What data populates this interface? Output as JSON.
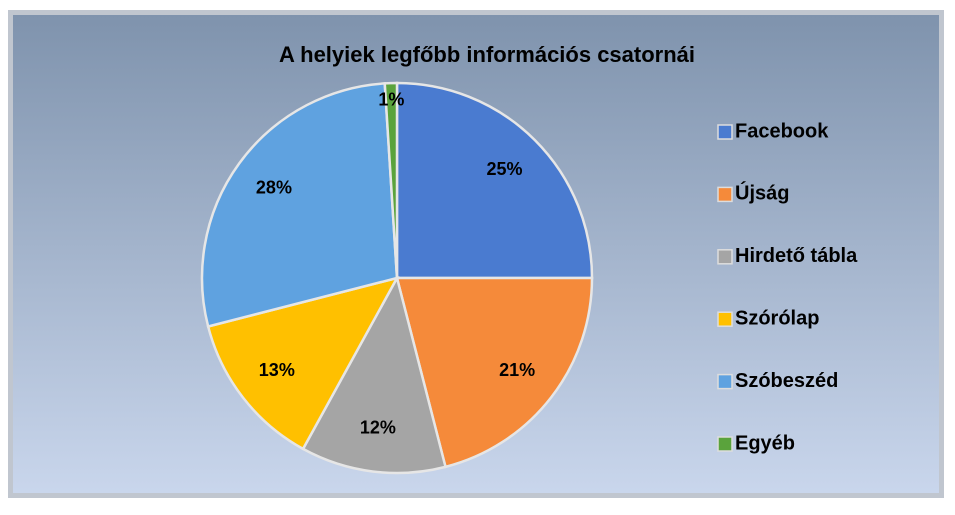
{
  "chart_data": {
    "type": "pie",
    "title": "A helyiek legfőbb információs csatornái",
    "categories": [
      "Facebook",
      "Újság",
      "Hirdető tábla",
      "Szórólap",
      "Szóbeszéd",
      "Egyéb"
    ],
    "values": [
      25,
      21,
      12,
      13,
      28,
      1
    ],
    "value_labels": [
      "25%",
      "21%",
      "12%",
      "13%",
      "28%",
      "1%"
    ],
    "colors": [
      "#4a7bd0",
      "#f58a3a",
      "#a5a5a5",
      "#ffc000",
      "#5fa2e0",
      "#5aa33c"
    ],
    "legend": "right"
  }
}
